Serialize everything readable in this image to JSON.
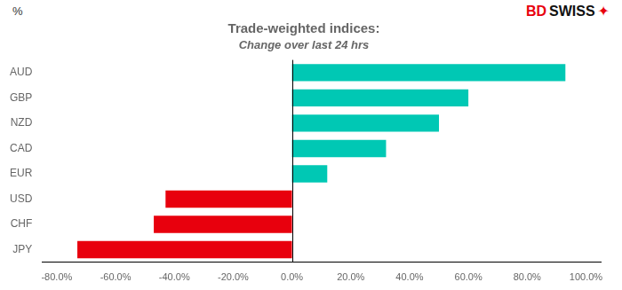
{
  "chart_data": {
    "type": "bar",
    "orientation": "horizontal",
    "title": "Trade-weighted indices:",
    "subtitle": "Change over last 24 hrs",
    "categories": [
      "AUD",
      "GBP",
      "NZD",
      "CAD",
      "EUR",
      "USD",
      "CHF",
      "JPY"
    ],
    "values": [
      0.93,
      0.6,
      0.5,
      0.32,
      0.12,
      -0.43,
      -0.47,
      -0.73
    ],
    "colors": [
      "#00C8B4",
      "#00C8B4",
      "#00C8B4",
      "#00C8B4",
      "#00C8B4",
      "#E8000D",
      "#E8000D",
      "#E8000D"
    ],
    "xlim": [
      -0.85,
      1.05
    ],
    "xticks": [
      {
        "value": -0.8,
        "label": "-80.0%"
      },
      {
        "value": -0.6,
        "label": "-60.0%"
      },
      {
        "value": -0.4,
        "label": "-40.0%"
      },
      {
        "value": -0.2,
        "label": "-20.0%"
      },
      {
        "value": 0.0,
        "label": "0.0%"
      },
      {
        "value": 0.2,
        "label": "20.0%"
      },
      {
        "value": 0.4,
        "label": "40.0%"
      },
      {
        "value": 0.6,
        "label": "60.0%"
      },
      {
        "value": 0.8,
        "label": "80.0%"
      },
      {
        "value": 1.0,
        "label": "100.0%"
      }
    ],
    "grid": false,
    "annotations": [
      {
        "text": "%"
      },
      {
        "text": "BD",
        "color": "#E8000D"
      },
      {
        "text": "SWISS",
        "color": "#111111"
      },
      {
        "text": "✦",
        "color": "#E8000D"
      }
    ]
  }
}
